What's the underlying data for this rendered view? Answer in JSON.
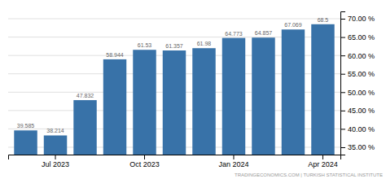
{
  "chart_data": {
    "type": "bar",
    "categories": [
      null,
      "Jul 2023",
      null,
      null,
      "Oct 2023",
      null,
      null,
      "Jan 2024",
      null,
      null,
      "Apr 2024"
    ],
    "values": [
      39.585,
      38.214,
      47.832,
      58.944,
      61.53,
      61.357,
      61.98,
      64.773,
      64.857,
      67.069,
      68.5
    ],
    "color": "#3872a8",
    "data_labels": true,
    "ylim": [
      33.0,
      72.0
    ],
    "yticks": [
      {
        "value": 35.0,
        "label": "35.00 %"
      },
      {
        "value": 40.0,
        "label": "40.00 %"
      },
      {
        "value": 45.0,
        "label": "45.00 %"
      },
      {
        "value": 50.0,
        "label": "50.00 %"
      },
      {
        "value": 55.0,
        "label": "55.00 %"
      },
      {
        "value": 60.0,
        "label": "60.00 %"
      },
      {
        "value": 65.0,
        "label": "65.00 %"
      },
      {
        "value": 70.0,
        "label": "70.00 %"
      }
    ],
    "grid": true,
    "annotation": "TRADINGECONOMICS.COM  |  TURKISH STATISTICAL INSTITUTE"
  }
}
